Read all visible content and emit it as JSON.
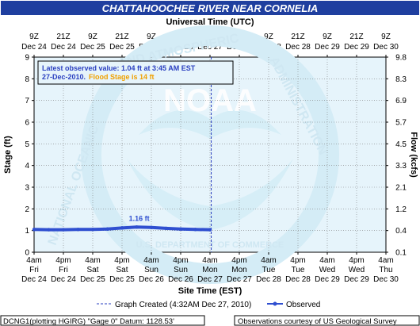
{
  "colors": {
    "title_bg": "#1f3f9f",
    "title_fg": "#ffffff",
    "plot_bg": "#e6f4fb",
    "grid": "#7f7f7f",
    "series": "#2f4fd0",
    "annotation_blue": "#2a3fc0",
    "annotation_orange": "#f0a000",
    "watermark": "#c9e6f3"
  },
  "chart_data": {
    "type": "line",
    "title": "CHATTAHOOCHEE RIVER NEAR CORNELIA",
    "top_axis_title": "Universal Time (UTC)",
    "xlabel": "Site Time (EST)",
    "ylabel_left": "Stage (ft)",
    "ylabel_right": "Flow (kcfs)",
    "ylim": [
      0,
      9
    ],
    "y_ticks": [
      "0",
      "1",
      "2",
      "3",
      "4",
      "5",
      "6",
      "7",
      "8",
      "9"
    ],
    "right_ticks": [
      "0.1",
      "0.4",
      "1.2",
      "2.1",
      "3.3",
      "4.5",
      "5.7",
      "6.9",
      "8.3",
      "9.8"
    ],
    "x_ticks_bottom": [
      {
        "time": "4am",
        "day": "Fri",
        "date": "Dec 24"
      },
      {
        "time": "4pm",
        "day": "Fri",
        "date": "Dec 24"
      },
      {
        "time": "4am",
        "day": "Sat",
        "date": "Dec 25"
      },
      {
        "time": "4pm",
        "day": "Sat",
        "date": "Dec 25"
      },
      {
        "time": "4am",
        "day": "Sun",
        "date": "Dec 26"
      },
      {
        "time": "4pm",
        "day": "Sun",
        "date": "Dec 26"
      },
      {
        "time": "4am",
        "day": "Mon",
        "date": "Dec 27"
      },
      {
        "time": "4pm",
        "day": "Mon",
        "date": "Dec 27"
      },
      {
        "time": "4am",
        "day": "Tue",
        "date": "Dec 28"
      },
      {
        "time": "4pm",
        "day": "Tue",
        "date": "Dec 28"
      },
      {
        "time": "4am",
        "day": "Wed",
        "date": "Dec 29"
      },
      {
        "time": "4pm",
        "day": "Wed",
        "date": "Dec 29"
      },
      {
        "time": "4am",
        "day": "Thu",
        "date": "Dec 30"
      }
    ],
    "x_ticks_top": [
      {
        "time": "9Z",
        "date": "Dec 24"
      },
      {
        "time": "21Z",
        "date": "Dec 24"
      },
      {
        "time": "9Z",
        "date": "Dec 25"
      },
      {
        "time": "21Z",
        "date": "Dec 25"
      },
      {
        "time": "9Z",
        "date": "Dec 26"
      },
      {
        "time": "21Z",
        "date": "Dec 26"
      },
      {
        "time": "9Z",
        "date": "Dec 27"
      },
      {
        "time": "21Z",
        "date": "Dec 27"
      },
      {
        "time": "9Z",
        "date": "Dec 28"
      },
      {
        "time": "21Z",
        "date": "Dec 28"
      },
      {
        "time": "9Z",
        "date": "Dec 29"
      },
      {
        "time": "21Z",
        "date": "Dec 29"
      },
      {
        "time": "9Z",
        "date": "Dec 30"
      }
    ],
    "xlim_hours": [
      0,
      144
    ],
    "created_marker_hours": 72.5,
    "series": [
      {
        "name": "Observed",
        "x_hours": [
          0,
          6,
          12,
          18,
          24,
          30,
          36,
          42,
          48,
          54,
          60,
          66,
          72
        ],
        "values": [
          1.05,
          1.04,
          1.04,
          1.05,
          1.05,
          1.07,
          1.12,
          1.16,
          1.14,
          1.1,
          1.07,
          1.05,
          1.04
        ]
      }
    ],
    "peak_label": {
      "text": "1.16 ft",
      "x_hours": 43,
      "value": 1.16
    },
    "annotation": {
      "line1": "Latest observed value: 1.04 ft at 3:45 AM EST",
      "line2_date": "27-Dec-2010.",
      "line2_flood": "Flood Stage is 14 ft"
    },
    "legend": {
      "created": "Graph Created (4:32AM Dec 27, 2010)",
      "observed": "Observed"
    },
    "footer_left": "DCNG1(plotting HGIRG) \"Gage 0\" Datum: 1128.53'",
    "footer_right": "Observations courtesy of US Geological Survey",
    "watermark": {
      "logo": "NOAA",
      "left": "NATIONAL OCEANIC",
      "top": "AND ATMOSPHERIC",
      "right": "ADMINISTRATION",
      "bottom": "U.S. DEPARTMENT OF COMMERCE"
    }
  }
}
